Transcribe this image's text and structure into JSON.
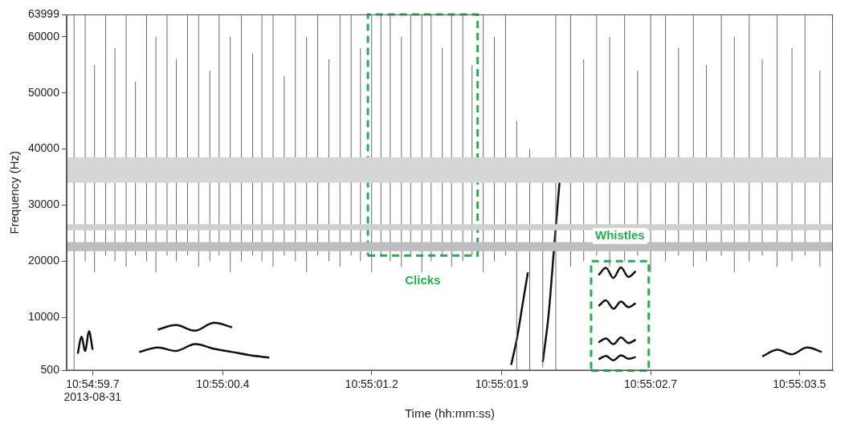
{
  "chart_data": {
    "type": "spectrogram",
    "x_title": "Time (hh:mm:ss)",
    "y_title": "Frequency (Hz)",
    "xlim": [
      59.56,
      63.68
    ],
    "xticks": [
      {
        "value": 59.7,
        "label": "10:54:59.7\n2013-08-31"
      },
      {
        "value": 60.4,
        "label": "10:55:00.4"
      },
      {
        "value": 61.2,
        "label": "10:55:01.2"
      },
      {
        "value": 61.9,
        "label": "10:55:01.9"
      },
      {
        "value": 62.7,
        "label": "10:55:02.7"
      },
      {
        "value": 63.5,
        "label": "10:55:03.5"
      }
    ],
    "ylim": [
      500,
      63999
    ],
    "yticks": [
      500,
      10000,
      20000,
      30000,
      40000,
      50000,
      60000,
      63999
    ],
    "grid": false,
    "bands": [
      {
        "low": 21800,
        "high": 23400,
        "color": "#bdbdbd"
      },
      {
        "low": 25500,
        "high": 26600,
        "color": "#d0d0d0"
      },
      {
        "low": 34000,
        "high": 38500,
        "color": "#d6d6d6"
      }
    ],
    "clicks": {
      "color": "#6e6e6e",
      "times": [
        59.6,
        59.66,
        59.71,
        59.77,
        59.82,
        59.88,
        59.93,
        59.99,
        60.04,
        60.1,
        60.15,
        60.21,
        60.27,
        60.33,
        60.38,
        60.44,
        60.5,
        60.56,
        60.61,
        60.67,
        60.73,
        60.79,
        60.85,
        60.91,
        60.97,
        61.03,
        61.09,
        61.14,
        61.2,
        61.25,
        61.3,
        61.36,
        61.41,
        61.47,
        61.52,
        61.58,
        61.63,
        61.69,
        61.74,
        61.8,
        61.86,
        61.92,
        61.98,
        62.05,
        62.12,
        62.19,
        62.27,
        62.34,
        62.41,
        62.48,
        62.56,
        62.63,
        62.7,
        62.78,
        62.85,
        62.93,
        63.0,
        63.08,
        63.15,
        63.23,
        63.3,
        63.38,
        63.46,
        63.53,
        63.61
      ],
      "low": [
        500,
        20000,
        18000,
        21000,
        20000,
        19000,
        21000,
        20000,
        18000,
        21000,
        20000,
        21000,
        19000,
        20000,
        21000,
        18000,
        20000,
        21000,
        20000,
        19000,
        21000,
        20000,
        18000,
        21000,
        20000,
        19000,
        21000,
        20000,
        18000,
        21000,
        20000,
        19000,
        21000,
        18000,
        20000,
        21000,
        19000,
        20000,
        21000,
        18000,
        20000,
        21000,
        500,
        500,
        1000,
        500,
        19000,
        20000,
        21000,
        19000,
        20000,
        21000,
        18000,
        20000,
        21000,
        19000,
        20000,
        21000,
        18000,
        20000,
        21000,
        19000,
        20000,
        21000,
        19000
      ],
      "high": [
        63999,
        63999,
        55000,
        63999,
        58000,
        63999,
        52000,
        63999,
        60000,
        63999,
        56000,
        63999,
        63999,
        54000,
        63999,
        60000,
        63999,
        57000,
        63999,
        63999,
        53000,
        63999,
        60000,
        63999,
        56000,
        63999,
        63999,
        58000,
        63999,
        63999,
        63999,
        60000,
        63999,
        63999,
        63999,
        58000,
        63999,
        63999,
        55000,
        63999,
        60000,
        63999,
        45000,
        40000,
        35000,
        63999,
        63999,
        56000,
        63999,
        60000,
        63999,
        54000,
        63999,
        63999,
        58000,
        63999,
        55000,
        63999,
        60000,
        63999,
        56000,
        63999,
        58000,
        63999,
        54000
      ]
    },
    "whistles": {
      "color": "#111111",
      "contours": [
        {
          "x": [
            59.62,
            59.64,
            59.66,
            59.68,
            59.7
          ],
          "y": [
            3500,
            6500,
            4000,
            7500,
            4200
          ]
        },
        {
          "x": [
            59.95,
            60.05,
            60.15,
            60.25,
            60.35,
            60.45,
            60.55,
            60.65
          ],
          "y": [
            3800,
            4600,
            4000,
            5200,
            4400,
            3800,
            3200,
            2800
          ]
        },
        {
          "x": [
            60.05,
            60.15,
            60.25,
            60.35,
            60.45
          ],
          "y": [
            7800,
            8600,
            7600,
            9000,
            8200
          ]
        },
        {
          "x": [
            61.95,
            61.98,
            62.01,
            62.04
          ],
          "y": [
            1500,
            6000,
            12000,
            18000
          ]
        },
        {
          "x": [
            62.12,
            62.15,
            62.18,
            62.21
          ],
          "y": [
            2000,
            10000,
            22000,
            34000
          ]
        },
        {
          "x": [
            62.42,
            62.46,
            62.5,
            62.54,
            62.58,
            62.62
          ],
          "y": [
            17500,
            18800,
            17000,
            18900,
            17200,
            18200
          ]
        },
        {
          "x": [
            62.42,
            62.46,
            62.5,
            62.54,
            62.58,
            62.62
          ],
          "y": [
            12000,
            13000,
            11500,
            12800,
            11800,
            12500
          ]
        },
        {
          "x": [
            62.42,
            62.46,
            62.5,
            62.54,
            62.58,
            62.62
          ],
          "y": [
            5500,
            6200,
            5200,
            6400,
            5400,
            6000
          ]
        },
        {
          "x": [
            62.42,
            62.46,
            62.5,
            62.54,
            62.58,
            62.62
          ],
          "y": [
            2500,
            3100,
            2300,
            3200,
            2600,
            2900
          ]
        },
        {
          "x": [
            63.3,
            63.38,
            63.46,
            63.54,
            63.62
          ],
          "y": [
            3000,
            4200,
            3400,
            4600,
            3800
          ]
        }
      ]
    },
    "annotations": [
      {
        "text": "Clicks",
        "color": "#22b14c",
        "box_x": [
          61.18,
          61.77
        ],
        "box_y": [
          21000,
          63999
        ],
        "x": 61.475,
        "y": 16500
      },
      {
        "text": "Whistles",
        "color": "#22b14c",
        "box_x": [
          62.38,
          62.69
        ],
        "box_y": [
          500,
          20000
        ],
        "x": 62.535,
        "y": 24500
      }
    ]
  }
}
